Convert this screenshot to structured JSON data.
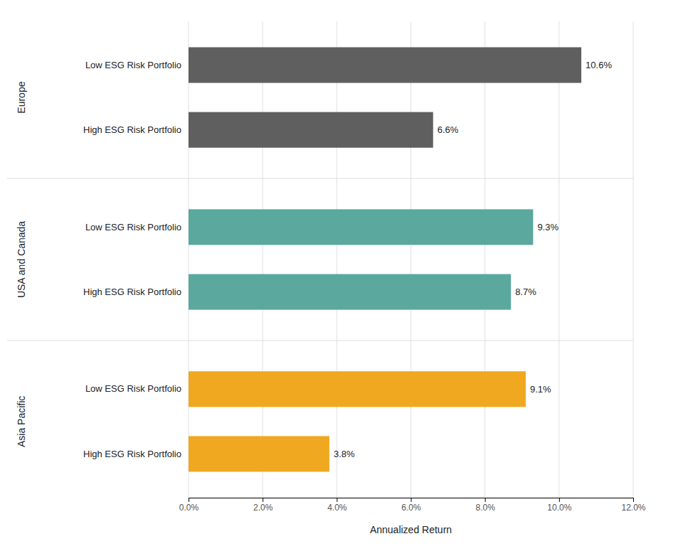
{
  "chart_data": {
    "type": "bar",
    "orientation": "horizontal",
    "xlabel": "Annualized Return",
    "categories": [
      "Low ESG Risk Portfolio",
      "High ESG Risk Portfolio"
    ],
    "series": [
      {
        "name": "Europe",
        "color": "#5f5f5f",
        "values": [
          10.6,
          6.6
        ],
        "value_labels": [
          "10.6%",
          "6.6%"
        ]
      },
      {
        "name": "USA and Canada",
        "color": "#5aa89e",
        "values": [
          9.3,
          8.7
        ],
        "value_labels": [
          "9.3%",
          "8.7%"
        ]
      },
      {
        "name": "Asia Pacific",
        "color": "#f0a820",
        "values": [
          9.1,
          3.8
        ],
        "value_labels": [
          "9.1%",
          "3.8%"
        ]
      }
    ],
    "xlim": [
      0,
      12
    ],
    "xticks": [
      {
        "value": 0,
        "label": "0.0%"
      },
      {
        "value": 2,
        "label": "2.0%"
      },
      {
        "value": 4,
        "label": "4.0%"
      },
      {
        "value": 6,
        "label": "6.0%"
      },
      {
        "value": 8,
        "label": "8.0%"
      },
      {
        "value": 10,
        "label": "10.0%"
      },
      {
        "value": 12,
        "label": "12.0%"
      }
    ],
    "grid": true,
    "data_labels": true
  }
}
